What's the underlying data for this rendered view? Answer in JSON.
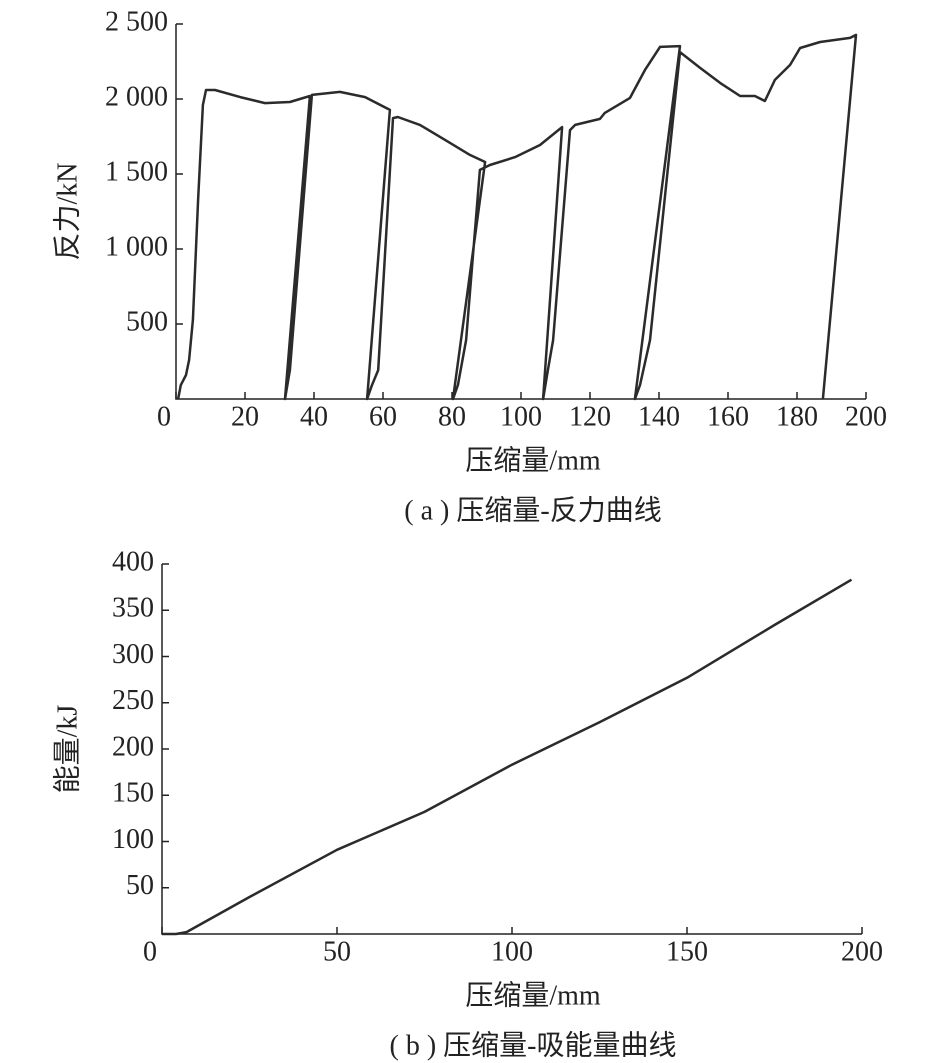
{
  "chart_data": [
    {
      "type": "line",
      "caption": "( a ) 压缩量-反力曲线",
      "x_label": "压缩量/mm",
      "y_label": "反力/kN",
      "xlim": [
        0,
        200
      ],
      "ylim": [
        0,
        2500
      ],
      "xticks": [
        0,
        20,
        40,
        60,
        80,
        100,
        120,
        140,
        160,
        180,
        200
      ],
      "yticks": [
        500,
        {
          "value": 1000,
          "label": "1 000"
        },
        {
          "value": 1500,
          "label": "1 500"
        },
        {
          "value": 2000,
          "label": "2 000"
        },
        {
          "value": 2500,
          "label": "2 500"
        }
      ],
      "color": "#2b2b2b",
      "x": [
        0.6,
        1.4,
        2.9,
        3.8,
        4.9,
        6.4,
        7.8,
        8.7,
        11.3,
        18.6,
        25.8,
        33,
        38.8,
        31.6,
        33,
        39.4,
        47.5,
        54.8,
        62,
        55.4,
        56.8,
        58.6,
        62.9,
        64.3,
        70.7,
        78,
        85.2,
        89.6,
        80.3,
        81.7,
        84.1,
        88.1,
        91,
        98.3,
        105.5,
        111.9,
        106.4,
        107.8,
        109.3,
        114.2,
        115.7,
        122.9,
        124.3,
        131.6,
        135.9,
        140.3,
        146.1,
        133,
        134.5,
        137.4,
        146.1,
        151.9,
        157.7,
        163.5,
        167.8,
        170.7,
        173.6,
        178,
        180.9,
        186.7,
        195.4,
        197.1,
        187.5
      ],
      "y": [
        0,
        93,
        160,
        260,
        527,
        1327,
        1960,
        2060,
        2060,
        2013,
        1973,
        1980,
        2020,
        0,
        193,
        2027,
        2047,
        2013,
        1927,
        0,
        93,
        193,
        1873,
        1880,
        1827,
        1727,
        1627,
        1580,
        0,
        93,
        393,
        1527,
        1560,
        1613,
        1693,
        1813,
        0,
        193,
        393,
        1793,
        1827,
        1867,
        1907,
        2007,
        2193,
        2347,
        2353,
        0,
        93,
        393,
        2313,
        2207,
        2107,
        2020,
        2020,
        1987,
        2127,
        2227,
        2340,
        2380,
        2407,
        2427,
        0
      ]
    },
    {
      "type": "line",
      "caption": "( b ) 压缩量-吸能量曲线",
      "x_label": "压缩量/mm",
      "y_label": "能量/kJ",
      "xlim": [
        0,
        200
      ],
      "ylim": [
        0,
        400
      ],
      "xticks": [
        0,
        50,
        100,
        150,
        200
      ],
      "yticks": [
        50,
        100,
        150,
        200,
        250,
        300,
        350,
        400
      ],
      "color": "#2b2b2b",
      "x": [
        0,
        4,
        7,
        25,
        50,
        75,
        100,
        125,
        150,
        175,
        197
      ],
      "y": [
        0,
        0,
        2,
        40,
        91,
        132,
        183,
        229,
        277,
        334,
        383
      ]
    }
  ]
}
